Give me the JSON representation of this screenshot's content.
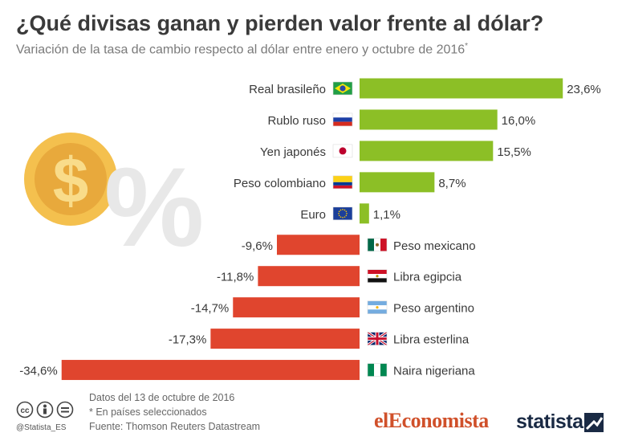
{
  "header": {
    "title": "¿Qué divisas ganan y pierden valor frente al dólar?",
    "subtitle": "Variación de la tasa de cambio respecto al dólar entre enero y octubre de 2016",
    "subtitle_mark": "*"
  },
  "chart_data": {
    "type": "bar",
    "orientation": "horizontal",
    "categories": [
      "Real brasileño",
      "Rublo ruso",
      "Yen japonés",
      "Peso colombiano",
      "Euro",
      "Peso mexicano",
      "Libra egipcia",
      "Peso argentino",
      "Libra esterlina",
      "Naira nigeriana"
    ],
    "values": [
      23.6,
      16.0,
      15.5,
      8.7,
      1.1,
      -9.6,
      -11.8,
      -14.7,
      -17.3,
      -34.6
    ],
    "value_labels": [
      "23,6%",
      "16,0%",
      "15,5%",
      "8,7%",
      "1,1%",
      "-9,6%",
      "-11,8%",
      "-14,7%",
      "-17,3%",
      "-34,6%"
    ],
    "flags": [
      "brazil-flag-icon",
      "russia-flag-icon",
      "japan-flag-icon",
      "colombia-flag-icon",
      "eu-flag-icon",
      "mexico-flag-icon",
      "egypt-flag-icon",
      "argentina-flag-icon",
      "uk-flag-icon",
      "nigeria-flag-icon"
    ],
    "positive_color": "#8cbf26",
    "negative_color": "#e0452e",
    "xlim": [
      -36,
      25
    ]
  },
  "footer": {
    "date_note": "Datos del 13 de octubre de 2016",
    "selection_note": "* En países seleccionados",
    "source": "Fuente: Thomson Reuters Datastream",
    "handle": "@Statista_ES",
    "brand_partner": "elEconomista",
    "brand": "statista"
  },
  "decoration": {
    "coin_color": "#f4c04e",
    "coin_symbol": "$",
    "percent_symbol": "%"
  }
}
